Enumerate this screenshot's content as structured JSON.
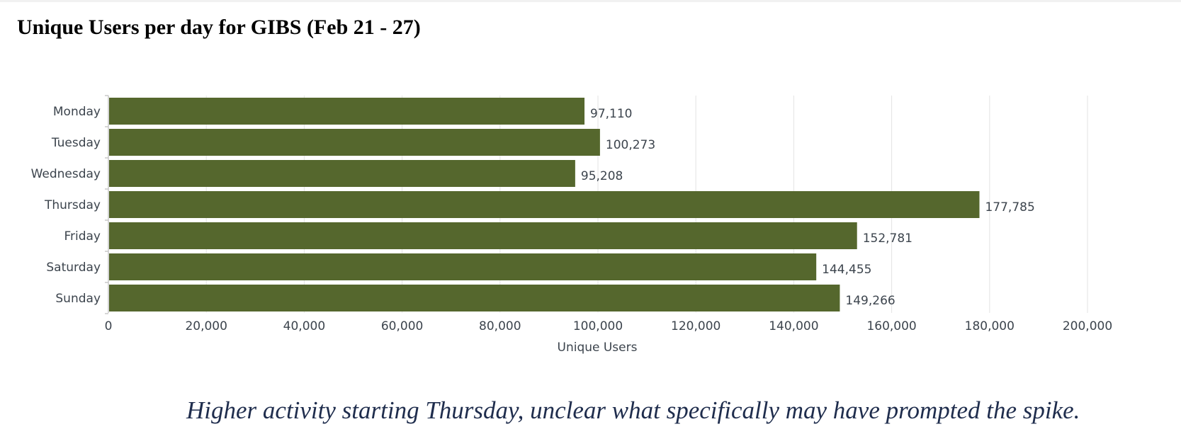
{
  "title": "Unique Users per day for GIBS (Feb 21 - 27)",
  "caption": "Higher activity starting Thursday, unclear what specifically may have prompted the spike.",
  "chart_data": {
    "type": "bar",
    "orientation": "horizontal",
    "title": "Unique Users per day for GIBS (Feb 21 - 27)",
    "categories": [
      "Monday",
      "Tuesday",
      "Wednesday",
      "Thursday",
      "Friday",
      "Saturday",
      "Sunday"
    ],
    "values": [
      97110,
      100273,
      95208,
      177785,
      152781,
      144455,
      149266
    ],
    "data_labels": [
      "97,110",
      "100,273",
      "95,208",
      "177,785",
      "152,781",
      "144,455",
      "149,266"
    ],
    "xlabel": "Unique Users",
    "ylabel": "",
    "xlim": [
      0,
      200000
    ],
    "x_ticks": [
      0,
      20000,
      40000,
      60000,
      80000,
      100000,
      120000,
      140000,
      160000,
      180000,
      200000
    ],
    "x_tick_labels": [
      "0",
      "20,000",
      "40,000",
      "60,000",
      "80,000",
      "100,000",
      "120,000",
      "140,000",
      "160,000",
      "180,000",
      "200,000"
    ],
    "grid": "vertical",
    "legend": "none",
    "bar_color": "#55672d"
  }
}
